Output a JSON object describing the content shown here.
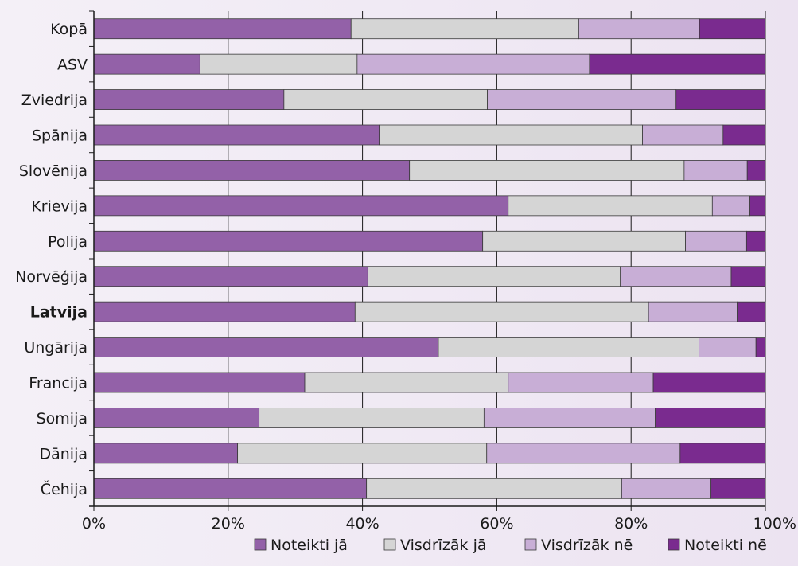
{
  "chart_data": {
    "type": "bar",
    "orientation": "horizontal",
    "stacked": "percent",
    "title": "",
    "xlabel": "",
    "ylabel": "",
    "xlim": [
      0,
      100
    ],
    "x_ticks": [
      "0%",
      "20%",
      "40%",
      "60%",
      "80%",
      "100%"
    ],
    "grid": true,
    "legend_position": "bottom",
    "highlighted_category": "Latvija",
    "categories": [
      "Kopā",
      "ASV",
      "Zviedrija",
      "Spānija",
      "Slovēnija",
      "Krievija",
      "Polija",
      "Norvēģija",
      "Latvija",
      "Ungārija",
      "Francija",
      "Somija",
      "Dānija",
      "Čehija"
    ],
    "series": [
      {
        "name": "Noteikti jā",
        "color": "#9361a8",
        "values": [
          38.3,
          15.8,
          28.3,
          42.5,
          47.0,
          61.7,
          57.9,
          40.8,
          38.9,
          51.3,
          31.4,
          24.6,
          21.4,
          40.6
        ]
      },
      {
        "name": "Visdrīzāk jā",
        "color": "#d5d5d5",
        "values": [
          33.9,
          23.4,
          30.3,
          39.2,
          40.9,
          30.4,
          30.2,
          37.6,
          43.7,
          38.8,
          30.3,
          33.5,
          37.1,
          38.0
        ]
      },
      {
        "name": "Visdrīzāk nē",
        "color": "#c8aed6",
        "values": [
          18.0,
          34.6,
          28.1,
          12.0,
          9.4,
          5.6,
          9.1,
          16.5,
          13.2,
          8.5,
          21.6,
          25.5,
          28.8,
          13.3
        ]
      },
      {
        "name": "Noteikti nē",
        "color": "#7a2b8f",
        "values": [
          9.8,
          26.2,
          13.3,
          6.3,
          2.7,
          2.3,
          2.8,
          5.1,
          4.2,
          1.4,
          16.7,
          16.4,
          12.7,
          8.1
        ]
      }
    ]
  }
}
